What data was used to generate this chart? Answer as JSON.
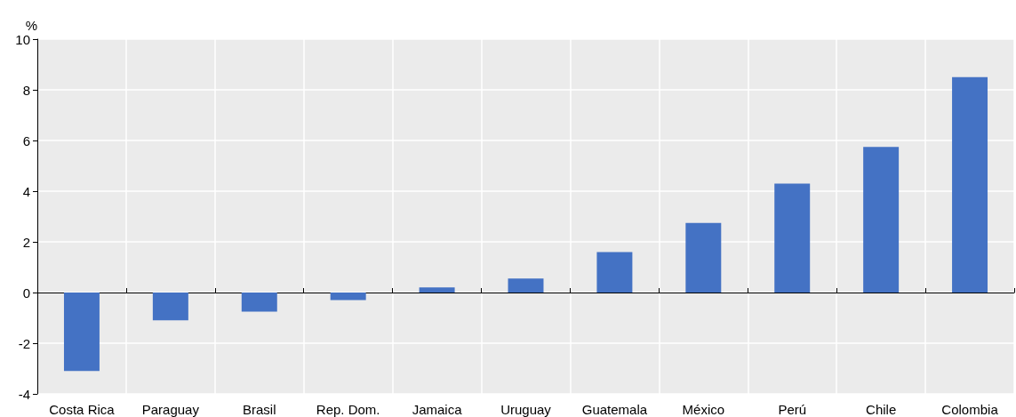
{
  "chart_data": {
    "type": "bar",
    "ylabel": "%",
    "categories": [
      "Costa Rica",
      "Paraguay",
      "Brasil",
      "Rep. Dom.",
      "Jamaica",
      "Uruguay",
      "Guatemala",
      "México",
      "Perú",
      "Chile",
      "Colombia"
    ],
    "values": [
      -3.1,
      -1.1,
      -0.75,
      -0.3,
      0.2,
      0.55,
      1.6,
      2.75,
      4.3,
      5.75,
      8.5
    ],
    "color": "#4472c4",
    "ylim": [
      -4,
      10
    ],
    "yticks": [
      -4,
      -2,
      0,
      2,
      4,
      6,
      8,
      10
    ],
    "grid": true
  }
}
